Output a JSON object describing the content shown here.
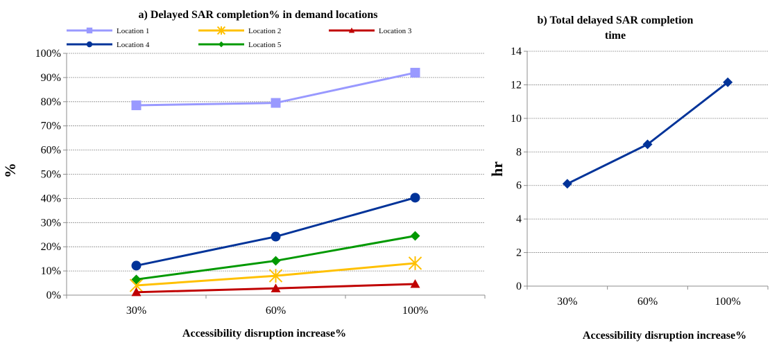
{
  "chart_data": [
    {
      "type": "line",
      "title": "a) Delayed  SAR completion% in demand locations",
      "xlabel": "Accessibility disruption increase%",
      "ylabel": "%",
      "categories": [
        "30%",
        "60%",
        "100%"
      ],
      "ylim": [
        0,
        100
      ],
      "yticks": [
        "0%",
        "10%",
        "20%",
        "30%",
        "40%",
        "50%",
        "60%",
        "70%",
        "80%",
        "90%",
        "100%"
      ],
      "grid": true,
      "legend_position": "top",
      "series": [
        {
          "name": "Location 1",
          "values": [
            78.5,
            79.5,
            92
          ],
          "color": "#9999ff",
          "marker": "square"
        },
        {
          "name": "Location 2",
          "values": [
            4,
            8,
            13.2
          ],
          "color": "#ffc000",
          "marker": "asterisk"
        },
        {
          "name": "Location 3",
          "values": [
            1.2,
            2.8,
            4.6
          ],
          "color": "#c00000",
          "marker": "triangle"
        },
        {
          "name": "Location 4",
          "values": [
            12.2,
            24.2,
            40.3
          ],
          "color": "#003399",
          "marker": "circle"
        },
        {
          "name": "Location 5",
          "values": [
            6.5,
            14.2,
            24.5
          ],
          "color": "#009900",
          "marker": "diamond"
        }
      ]
    },
    {
      "type": "line",
      "title_line1": "b) Total delayed SAR completion",
      "title_line2": "time",
      "xlabel": "Accessibility disruption increase%",
      "ylabel": "hr",
      "categories": [
        "30%",
        "60%",
        "100%"
      ],
      "ylim": [
        0,
        14
      ],
      "yticks": [
        "0",
        "2",
        "4",
        "6",
        "8",
        "10",
        "12",
        "14"
      ],
      "grid": true,
      "series": [
        {
          "values": [
            6.1,
            8.45,
            12.15
          ],
          "color": "#003399",
          "marker": "diamond"
        }
      ]
    }
  ]
}
